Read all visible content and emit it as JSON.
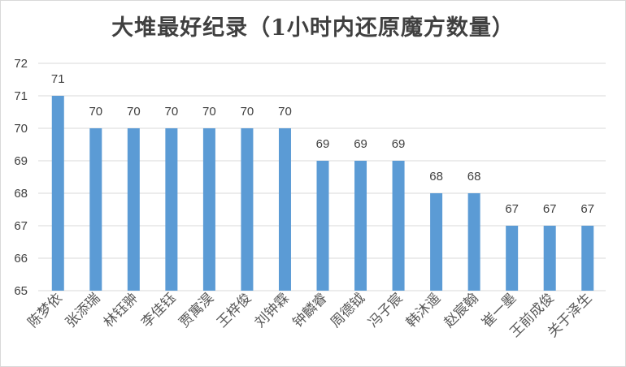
{
  "chart_data": {
    "type": "bar",
    "title": "大堆最好纪录（1小时内还原魔方数量）",
    "xlabel": "",
    "ylabel": "",
    "ylim": [
      65,
      72
    ],
    "yticks": [
      65,
      66,
      67,
      68,
      69,
      70,
      71,
      72
    ],
    "grid": true,
    "bar_color": "#5b9bd5",
    "categories": [
      "陈梦依",
      "张添瑞",
      "林钰翀",
      "李佳钰",
      "贾寓淏",
      "王梓俊",
      "刘钟霖",
      "钟麟睿",
      "周德钺",
      "冯子宸",
      "韩沐遥",
      "赵宸翰",
      "崔一墨",
      "王前成俊",
      "关于泽生"
    ],
    "values": [
      71,
      70,
      70,
      70,
      70,
      70,
      70,
      69,
      69,
      69,
      68,
      68,
      67,
      67,
      67
    ]
  }
}
